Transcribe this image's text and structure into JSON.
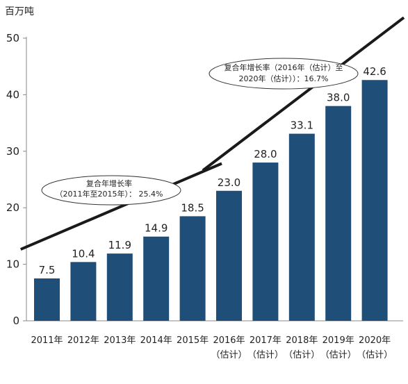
{
  "chart_data": {
    "type": "bar",
    "unit_label": "百万吨",
    "categories": [
      [
        "2011年"
      ],
      [
        "2012年"
      ],
      [
        "2013年"
      ],
      [
        "2014年"
      ],
      [
        "2015年"
      ],
      [
        "2016年",
        "（估计）"
      ],
      [
        "2017年",
        "（估计）"
      ],
      [
        "2018年",
        "（估计）"
      ],
      [
        "2019年",
        "（估计）"
      ],
      [
        "2020年",
        "（估计）"
      ]
    ],
    "values": [
      7.5,
      10.4,
      11.9,
      14.9,
      18.5,
      23.0,
      28.0,
      33.1,
      38.0,
      42.6
    ],
    "value_labels": [
      "7.5",
      "10.4",
      "11.9",
      "14.9",
      "18.5",
      "23.0",
      "28.0",
      "33.1",
      "38.0",
      "42.6"
    ],
    "ylim": [
      0,
      50
    ],
    "yticks": [
      0,
      10,
      20,
      30,
      40,
      50
    ],
    "grid": false,
    "bar_color": "#1f4e79",
    "annotations": [
      {
        "lines": [
          "复合年增长率",
          "（2011年至2015年）： 25.4%"
        ],
        "trend_from": 7.5,
        "trend_to": 18.5,
        "trend_bars": [
          0,
          4
        ]
      },
      {
        "lines": [
          "复合年增长率（2016年（估计）至",
          "2020年（估计））：16.7%"
        ],
        "trend_from": 23.0,
        "trend_to": 42.6,
        "trend_bars": [
          5,
          9
        ]
      }
    ]
  }
}
